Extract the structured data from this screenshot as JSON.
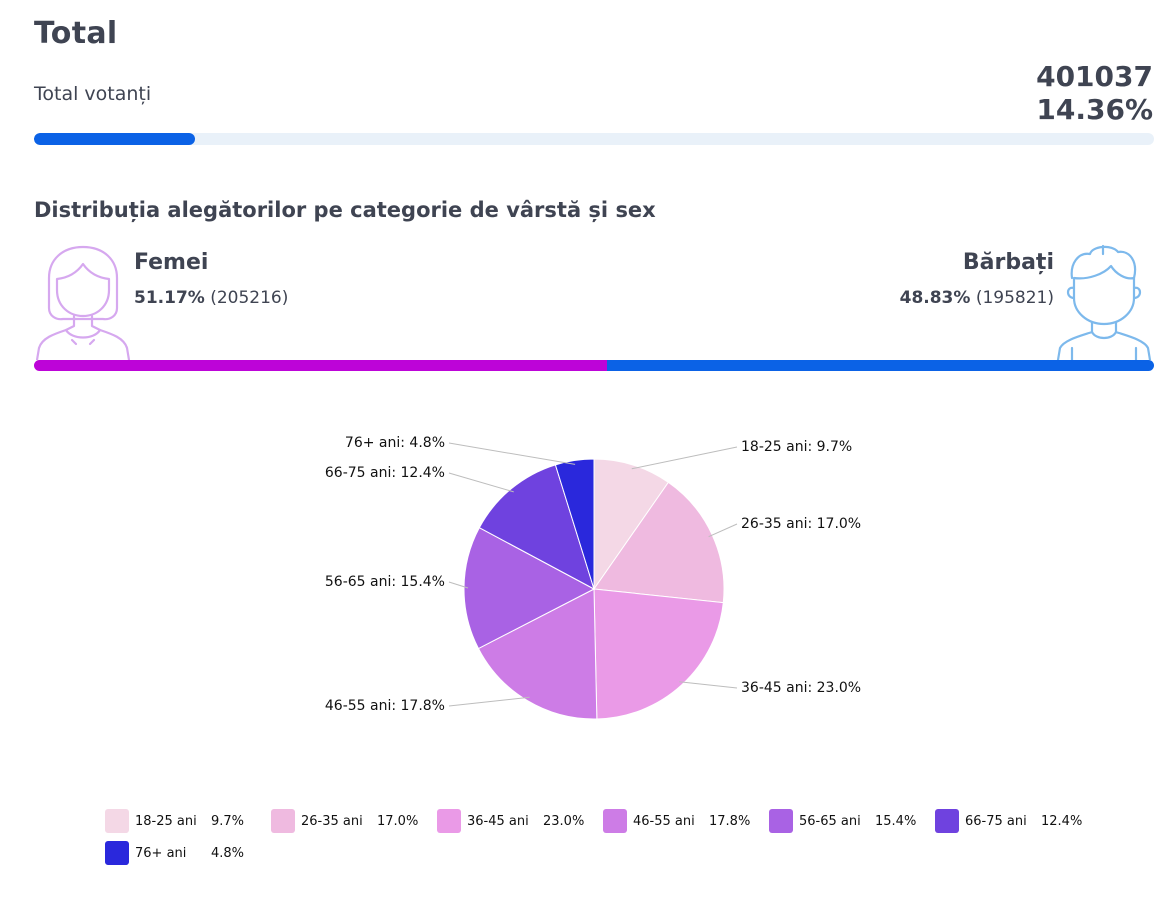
{
  "header": {
    "title": "Total",
    "total_label": "Total votanți",
    "total_value": "401037",
    "total_percent": "14.36%",
    "progress_fraction": 0.1436,
    "progress_color": "#0b62e6"
  },
  "distribution": {
    "title": "Distribuția alegătorilor pe categorie de vârstă și sex",
    "female": {
      "label": "Femei",
      "percent": "51.17%",
      "count": "(205216)",
      "fraction": 0.5117,
      "color": "#bd04d8",
      "icon": "female-avatar-icon"
    },
    "male": {
      "label": "Bărbați",
      "percent": "48.83%",
      "count": "(195821)",
      "fraction": 0.4883,
      "color": "#0b62e6",
      "icon": "male-avatar-icon"
    }
  },
  "chart_data": {
    "type": "pie",
    "categories": [
      "18-25 ani",
      "26-35 ani",
      "36-45 ani",
      "46-55 ani",
      "56-65 ani",
      "66-75 ani",
      "76+ ani"
    ],
    "values": [
      9.7,
      17.0,
      23.0,
      17.8,
      15.4,
      12.4,
      4.8
    ],
    "labels": [
      "9.7%",
      "17.0%",
      "23.0%",
      "17.8%",
      "15.4%",
      "12.4%",
      "4.8%"
    ],
    "colors": [
      "#f4d8e6",
      "#efbae0",
      "#ea9ae7",
      "#cd7ce6",
      "#a962e4",
      "#6f42df",
      "#2a28dc"
    ],
    "legend_position": "bottom"
  }
}
